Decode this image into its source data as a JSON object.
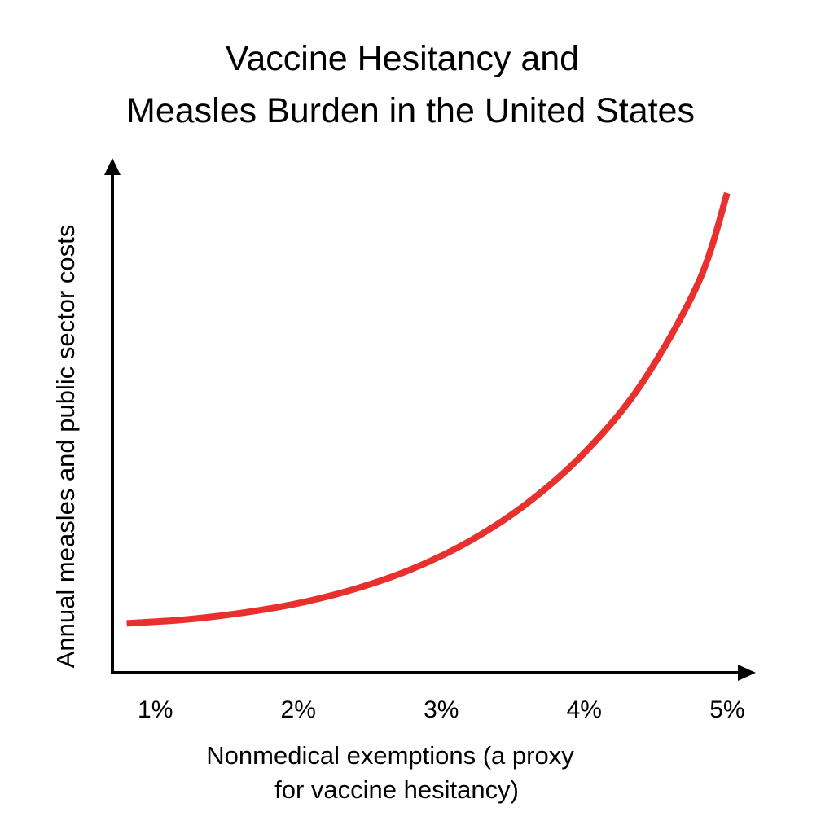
{
  "chart_data": {
    "type": "line",
    "title_lines": [
      "Vaccine Hesitancy and",
      "Measles Burden in the United States"
    ],
    "xlabel_lines": [
      "Nonmedical exemptions (a proxy",
      "for vaccine hesitancy)"
    ],
    "ylabel": "Annual measles and public sector costs",
    "x_ticks": [
      "1%",
      "2%",
      "3%",
      "4%",
      "5%"
    ],
    "x_domain": [
      0.7,
      5.2
    ],
    "y_domain": [
      0,
      100
    ],
    "series": [
      {
        "color": "#e8312f",
        "points": [
          [
            0.8,
            9.6
          ],
          [
            1.2,
            10.3
          ],
          [
            1.6,
            11.6
          ],
          [
            2.0,
            13.5
          ],
          [
            2.4,
            16.3
          ],
          [
            2.8,
            20.2
          ],
          [
            3.2,
            25.6
          ],
          [
            3.6,
            32.9
          ],
          [
            4.0,
            42.7
          ],
          [
            4.4,
            56.1
          ],
          [
            4.8,
            75.9
          ],
          [
            5.0,
            93.2
          ]
        ]
      }
    ],
    "grid": false,
    "legend": "none",
    "axis_color": "#000000"
  }
}
